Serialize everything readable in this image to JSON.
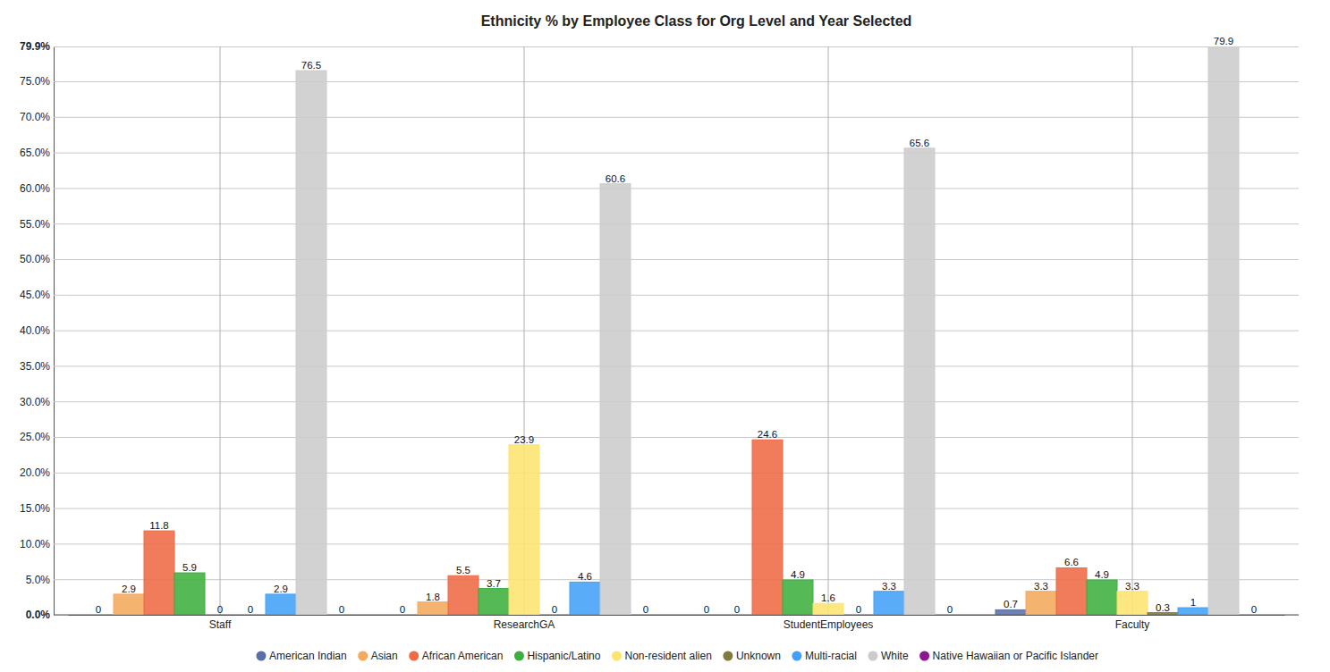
{
  "chart_data": {
    "type": "bar",
    "title": "Ethnicity % by Employee Class for Org Level and Year Selected",
    "categories": [
      "Staff",
      "ResearchGA",
      "StudentEmployees",
      "Faculty"
    ],
    "series": [
      {
        "name": "American Indian",
        "color": "#5a6fa8",
        "values": [
          0,
          0,
          0,
          0.7
        ]
      },
      {
        "name": "Asian",
        "color": "#f4a95c",
        "values": [
          2.9,
          1.8,
          0,
          3.3
        ]
      },
      {
        "name": "African American",
        "color": "#ef6a45",
        "values": [
          11.8,
          5.5,
          24.6,
          6.6
        ]
      },
      {
        "name": "Hispanic/Latino",
        "color": "#3daf3f",
        "values": [
          5.9,
          3.7,
          4.9,
          4.9
        ]
      },
      {
        "name": "Non-resident alien",
        "color": "#fde46e",
        "values": [
          0,
          23.9,
          1.6,
          3.3
        ]
      },
      {
        "name": "Unknown",
        "color": "#7f7b3c",
        "values": [
          0,
          0,
          0,
          0.3
        ]
      },
      {
        "name": "Multi-racial",
        "color": "#42a1f6",
        "values": [
          2.9,
          4.6,
          3.3,
          1
        ]
      },
      {
        "name": "White",
        "color": "#cccccc",
        "values": [
          76.5,
          60.6,
          65.6,
          79.9
        ]
      },
      {
        "name": "Native Hawaiian or Pacific Islander",
        "color": "#8e178e",
        "values": [
          0,
          0,
          0,
          0
        ]
      }
    ],
    "ylim": [
      0,
      79.9
    ],
    "yticks": [
      {
        "value": 0,
        "label": "0.0%"
      },
      {
        "value": 5,
        "label": "5.0%"
      },
      {
        "value": 10,
        "label": "10.0%"
      },
      {
        "value": 15,
        "label": "15.0%"
      },
      {
        "value": 20,
        "label": "20.0%"
      },
      {
        "value": 25,
        "label": "25.0%"
      },
      {
        "value": 30,
        "label": "30.0%"
      },
      {
        "value": 35,
        "label": "35.0%"
      },
      {
        "value": 40,
        "label": "40.0%"
      },
      {
        "value": 45,
        "label": "45.0%"
      },
      {
        "value": 50,
        "label": "50.0%"
      },
      {
        "value": 55,
        "label": "55.0%"
      },
      {
        "value": 60,
        "label": "60.0%"
      },
      {
        "value": 65,
        "label": "65.0%"
      },
      {
        "value": 70,
        "label": "70.0%"
      },
      {
        "value": 75,
        "label": "75.0%"
      },
      {
        "value": 79.9,
        "label": "79.9%"
      }
    ],
    "grid": true,
    "data_labels": true,
    "legend": "bottom"
  }
}
